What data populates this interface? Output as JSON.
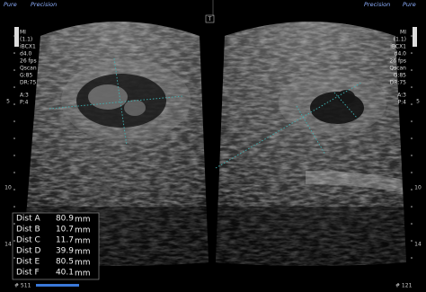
{
  "header": {
    "left_brand": "Pure",
    "left_mode": "Precision",
    "right_mode": "Precision",
    "right_brand": "Pure",
    "marker": "T"
  },
  "left_panel": {
    "params": [
      "MI",
      "(1.1)",
      "iBCX1",
      "d4.0",
      "26 fps",
      "Qscan",
      "G:85",
      "DR:75",
      "A:3",
      "P:4"
    ],
    "depth_labels": [
      "5",
      "10",
      "14"
    ]
  },
  "right_panel": {
    "params": [
      "MI",
      "(1.1)",
      "iBCX1",
      "d4.0",
      "26 fps",
      "Qscan",
      "G:85",
      "DR:75",
      "A:3",
      "P:4"
    ],
    "depth_labels": [
      "5",
      "10",
      "14"
    ]
  },
  "measurements": {
    "rows": [
      {
        "label": "Dist A",
        "value": "80.9",
        "unit": "mm"
      },
      {
        "label": "Dist B",
        "value": "10.7",
        "unit": "mm"
      },
      {
        "label": "Dist C",
        "value": "11.7",
        "unit": "mm"
      },
      {
        "label": "Dist D",
        "value": "39.9",
        "unit": "mm"
      },
      {
        "label": "Dist E",
        "value": "80.5",
        "unit": "mm"
      },
      {
        "label": "Dist F",
        "value": "40.1",
        "unit": "mm"
      }
    ]
  },
  "footer": {
    "left_frame": "# 511",
    "right_frame": "# 121"
  }
}
